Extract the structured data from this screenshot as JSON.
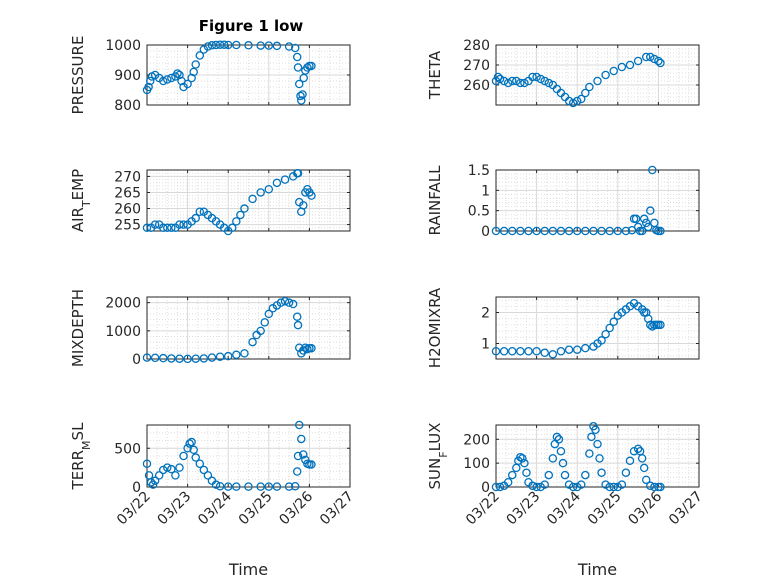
{
  "figure": {
    "title": "Figure 1 low"
  },
  "colors": {
    "marker": "#0072bd",
    "grid": "#dfdfdf",
    "axis": "#262626",
    "background": "#ffffff"
  },
  "chart_data": [
    {
      "id": "pressure",
      "type": "scatter",
      "marker": "circle",
      "ylabel": "PRESSURE",
      "xlabel": "",
      "title": "Figure 1 low",
      "ylim": [
        800,
        1000
      ],
      "yticks": [
        800,
        900,
        1000
      ],
      "ytick_labels": [
        "800",
        "900",
        "1000"
      ],
      "xlim": [
        0,
        5
      ],
      "xticks": [
        0,
        1,
        2,
        3,
        4,
        5
      ],
      "xtick_labels": [],
      "grid": true,
      "x": [
        0.0,
        0.04,
        0.08,
        0.12,
        0.2,
        0.3,
        0.4,
        0.5,
        0.6,
        0.7,
        0.75,
        0.8,
        0.85,
        0.9,
        1.0,
        1.1,
        1.15,
        1.2,
        1.3,
        1.4,
        1.5,
        1.6,
        1.7,
        1.8,
        1.9,
        2.0,
        2.2,
        2.5,
        2.8,
        3.0,
        3.2,
        3.5,
        3.65,
        3.7,
        3.72,
        3.75,
        3.78,
        3.8,
        3.83,
        3.86,
        3.9,
        3.95,
        4.0,
        4.05
      ],
      "y": [
        850,
        860,
        880,
        895,
        900,
        890,
        880,
        885,
        890,
        895,
        905,
        900,
        880,
        860,
        870,
        890,
        910,
        935,
        965,
        985,
        995,
        999,
        1000,
        1001,
        1001,
        1000,
        1000,
        999,
        998,
        998,
        997,
        995,
        990,
        960,
        925,
        870,
        830,
        815,
        835,
        890,
        915,
        925,
        930,
        930
      ]
    },
    {
      "id": "theta",
      "type": "scatter",
      "marker": "circle",
      "ylabel": "THETA",
      "xlabel": "",
      "ylim": [
        250,
        280
      ],
      "yticks": [
        260,
        270,
        280
      ],
      "ytick_labels": [
        "260",
        "270",
        "280"
      ],
      "xlim": [
        0,
        5
      ],
      "xticks": [
        0,
        1,
        2,
        3,
        4,
        5
      ],
      "xtick_labels": [],
      "grid": true,
      "x": [
        0.0,
        0.05,
        0.1,
        0.2,
        0.3,
        0.4,
        0.5,
        0.6,
        0.7,
        0.8,
        0.9,
        1.0,
        1.1,
        1.2,
        1.3,
        1.4,
        1.5,
        1.6,
        1.7,
        1.8,
        1.9,
        2.0,
        2.1,
        2.2,
        2.3,
        2.5,
        2.7,
        2.9,
        3.1,
        3.3,
        3.5,
        3.7,
        3.8,
        3.9,
        4.0,
        4.05
      ],
      "y": [
        262,
        264,
        263,
        262,
        261,
        262,
        262,
        261,
        261,
        262,
        264,
        264,
        263,
        262,
        261,
        260,
        258,
        256,
        254,
        252,
        251,
        252,
        253,
        256,
        259,
        262,
        265,
        267,
        269,
        270,
        272,
        274,
        274,
        273,
        272,
        271
      ]
    },
    {
      "id": "air_temp",
      "type": "scatter",
      "marker": "circle",
      "ylabel": "AIR_TEMP",
      "ylabel_main": "AIR",
      "ylabel_sub": "T",
      "ylabel_rest": "EMP",
      "xlabel": "",
      "ylim": [
        253,
        272
      ],
      "yticks": [
        255,
        260,
        265,
        270
      ],
      "ytick_labels": [
        "255",
        "260",
        "265",
        "270"
      ],
      "xlim": [
        0,
        5
      ],
      "xticks": [
        0,
        1,
        2,
        3,
        4,
        5
      ],
      "xtick_labels": [],
      "grid": true,
      "x": [
        0.0,
        0.1,
        0.2,
        0.3,
        0.4,
        0.5,
        0.6,
        0.7,
        0.8,
        0.9,
        1.0,
        1.1,
        1.2,
        1.3,
        1.4,
        1.5,
        1.6,
        1.7,
        1.8,
        1.9,
        2.0,
        2.1,
        2.2,
        2.3,
        2.4,
        2.6,
        2.8,
        3.0,
        3.2,
        3.4,
        3.6,
        3.7,
        3.72,
        3.75,
        3.8,
        3.85,
        3.9,
        3.95,
        4.0,
        4.05
      ],
      "y": [
        254,
        254,
        255,
        255,
        254,
        254,
        254,
        254,
        255,
        255,
        255,
        256,
        257,
        259,
        259,
        258,
        257,
        256,
        255,
        254,
        253,
        254,
        256,
        258,
        260,
        263,
        265,
        266,
        268,
        269,
        270,
        271,
        271,
        262,
        259,
        261,
        265,
        266,
        265,
        264
      ]
    },
    {
      "id": "rainfall",
      "type": "scatter",
      "marker": "circle",
      "ylabel": "RAINFALL",
      "xlabel": "",
      "ylim": [
        0,
        1.5
      ],
      "yticks": [
        0,
        0.5,
        1,
        1.5
      ],
      "ytick_labels": [
        "0",
        "0.5",
        "1",
        "1.5"
      ],
      "xlim": [
        0,
        5
      ],
      "xticks": [
        0,
        1,
        2,
        3,
        4,
        5
      ],
      "xtick_labels": [],
      "grid": true,
      "x": [
        0.0,
        0.2,
        0.4,
        0.6,
        0.8,
        1.0,
        1.2,
        1.4,
        1.6,
        1.8,
        2.0,
        2.2,
        2.4,
        2.6,
        2.8,
        3.0,
        3.2,
        3.35,
        3.4,
        3.45,
        3.5,
        3.55,
        3.6,
        3.65,
        3.7,
        3.75,
        3.8,
        3.85,
        3.9,
        3.95,
        4.0,
        4.05
      ],
      "y": [
        0,
        0,
        0,
        0,
        0,
        0,
        0,
        0,
        0,
        0,
        0,
        0,
        0,
        0,
        0,
        0,
        0,
        0.02,
        0.3,
        0.3,
        0.1,
        0,
        0,
        0.3,
        0.2,
        0.1,
        0.5,
        1.5,
        0.2,
        0.02,
        0,
        0
      ]
    },
    {
      "id": "mixdepth",
      "type": "scatter",
      "marker": "circle",
      "ylabel": "MIXDEPTH",
      "xlabel": "",
      "ylim": [
        0,
        2200
      ],
      "yticks": [
        0,
        1000,
        2000
      ],
      "ytick_labels": [
        "0",
        "1000",
        "2000"
      ],
      "xlim": [
        0,
        5
      ],
      "xticks": [
        0,
        1,
        2,
        3,
        4,
        5
      ],
      "xtick_labels": [],
      "grid": true,
      "x": [
        0.0,
        0.2,
        0.4,
        0.6,
        0.8,
        1.0,
        1.2,
        1.4,
        1.6,
        1.8,
        2.0,
        2.2,
        2.4,
        2.6,
        2.7,
        2.8,
        2.9,
        3.0,
        3.1,
        3.2,
        3.3,
        3.4,
        3.5,
        3.6,
        3.7,
        3.72,
        3.75,
        3.8,
        3.85,
        3.9,
        3.95,
        4.0,
        4.05
      ],
      "y": [
        50,
        40,
        30,
        20,
        10,
        5,
        10,
        20,
        50,
        80,
        100,
        150,
        200,
        600,
        850,
        1000,
        1300,
        1600,
        1800,
        1900,
        2000,
        2050,
        2000,
        1950,
        1500,
        1200,
        400,
        200,
        300,
        400,
        350,
        380,
        380
      ]
    },
    {
      "id": "h2omixra",
      "type": "scatter",
      "marker": "circle",
      "ylabel": "H2OMIXRA",
      "xlabel": "",
      "ylim": [
        0.5,
        2.5
      ],
      "yticks": [
        1,
        2
      ],
      "ytick_labels": [
        "1",
        "2"
      ],
      "xlim": [
        0,
        5
      ],
      "xticks": [
        0,
        1,
        2,
        3,
        4,
        5
      ],
      "xtick_labels": [],
      "grid": true,
      "x": [
        0.0,
        0.2,
        0.4,
        0.6,
        0.8,
        1.0,
        1.2,
        1.4,
        1.6,
        1.8,
        2.0,
        2.2,
        2.4,
        2.5,
        2.6,
        2.7,
        2.8,
        2.9,
        3.0,
        3.1,
        3.2,
        3.3,
        3.4,
        3.5,
        3.6,
        3.65,
        3.7,
        3.75,
        3.8,
        3.85,
        3.9,
        3.95,
        4.0,
        4.05
      ],
      "y": [
        0.75,
        0.75,
        0.75,
        0.75,
        0.75,
        0.75,
        0.7,
        0.65,
        0.75,
        0.8,
        0.8,
        0.85,
        0.9,
        1.0,
        1.1,
        1.3,
        1.5,
        1.7,
        1.9,
        2.0,
        2.1,
        2.2,
        2.3,
        2.2,
        2.1,
        2.0,
        2.0,
        1.8,
        1.6,
        1.55,
        1.6,
        1.6,
        1.6,
        1.6
      ]
    },
    {
      "id": "terr_msl",
      "type": "scatter",
      "marker": "circle",
      "ylabel": "TERR_MSL",
      "ylabel_main": "TERR",
      "ylabel_sub": "M",
      "ylabel_rest": "SL",
      "xlabel": "Time",
      "ylim": [
        0,
        800
      ],
      "yticks": [
        0,
        500
      ],
      "ytick_labels": [
        "0",
        "500"
      ],
      "xlim": [
        0,
        5
      ],
      "xticks": [
        0,
        1,
        2,
        3,
        4,
        5
      ],
      "xtick_labels": [
        "03/22",
        "03/23",
        "03/24",
        "03/25",
        "03/26",
        "03/27"
      ],
      "grid": true,
      "x": [
        0.0,
        0.05,
        0.1,
        0.15,
        0.2,
        0.3,
        0.4,
        0.5,
        0.6,
        0.7,
        0.8,
        0.9,
        1.0,
        1.05,
        1.1,
        1.15,
        1.2,
        1.3,
        1.4,
        1.5,
        1.6,
        1.7,
        1.8,
        2.0,
        2.2,
        2.5,
        2.8,
        3.0,
        3.2,
        3.5,
        3.65,
        3.7,
        3.72,
        3.75,
        3.8,
        3.85,
        3.9,
        3.95,
        4.0,
        4.05
      ],
      "y": [
        300,
        150,
        60,
        30,
        80,
        150,
        220,
        250,
        230,
        150,
        250,
        400,
        500,
        560,
        580,
        480,
        380,
        300,
        220,
        150,
        80,
        30,
        10,
        5,
        5,
        5,
        5,
        5,
        5,
        5,
        10,
        200,
        400,
        800,
        620,
        420,
        350,
        300,
        290,
        290
      ]
    },
    {
      "id": "sun_flux",
      "type": "scatter",
      "marker": "circle",
      "ylabel": "SUN_FLUX",
      "ylabel_main": "SUN",
      "ylabel_sub": "F",
      "ylabel_rest": "LUX",
      "xlabel": "Time",
      "ylim": [
        0,
        260
      ],
      "yticks": [
        0,
        100,
        200
      ],
      "ytick_labels": [
        "0",
        "100",
        "200"
      ],
      "xlim": [
        0,
        5
      ],
      "xticks": [
        0,
        1,
        2,
        3,
        4,
        5
      ],
      "xtick_labels": [
        "03/22",
        "03/23",
        "03/24",
        "03/25",
        "03/26",
        "03/27"
      ],
      "grid": true,
      "x": [
        0.0,
        0.1,
        0.2,
        0.3,
        0.4,
        0.5,
        0.55,
        0.6,
        0.65,
        0.7,
        0.75,
        0.8,
        0.9,
        1.0,
        1.1,
        1.2,
        1.3,
        1.4,
        1.45,
        1.5,
        1.55,
        1.6,
        1.65,
        1.7,
        1.8,
        1.9,
        2.0,
        2.1,
        2.2,
        2.3,
        2.35,
        2.4,
        2.45,
        2.5,
        2.55,
        2.6,
        2.7,
        2.8,
        2.9,
        3.0,
        3.1,
        3.2,
        3.3,
        3.4,
        3.5,
        3.55,
        3.6,
        3.65,
        3.7,
        3.8,
        3.9,
        4.0,
        4.05
      ],
      "y": [
        0,
        0,
        5,
        20,
        50,
        80,
        110,
        125,
        120,
        100,
        60,
        20,
        5,
        0,
        0,
        10,
        50,
        120,
        180,
        210,
        200,
        150,
        100,
        50,
        10,
        0,
        0,
        10,
        50,
        140,
        210,
        255,
        240,
        180,
        120,
        60,
        10,
        0,
        0,
        0,
        10,
        60,
        110,
        150,
        160,
        150,
        120,
        80,
        30,
        5,
        0,
        0,
        0
      ]
    }
  ]
}
